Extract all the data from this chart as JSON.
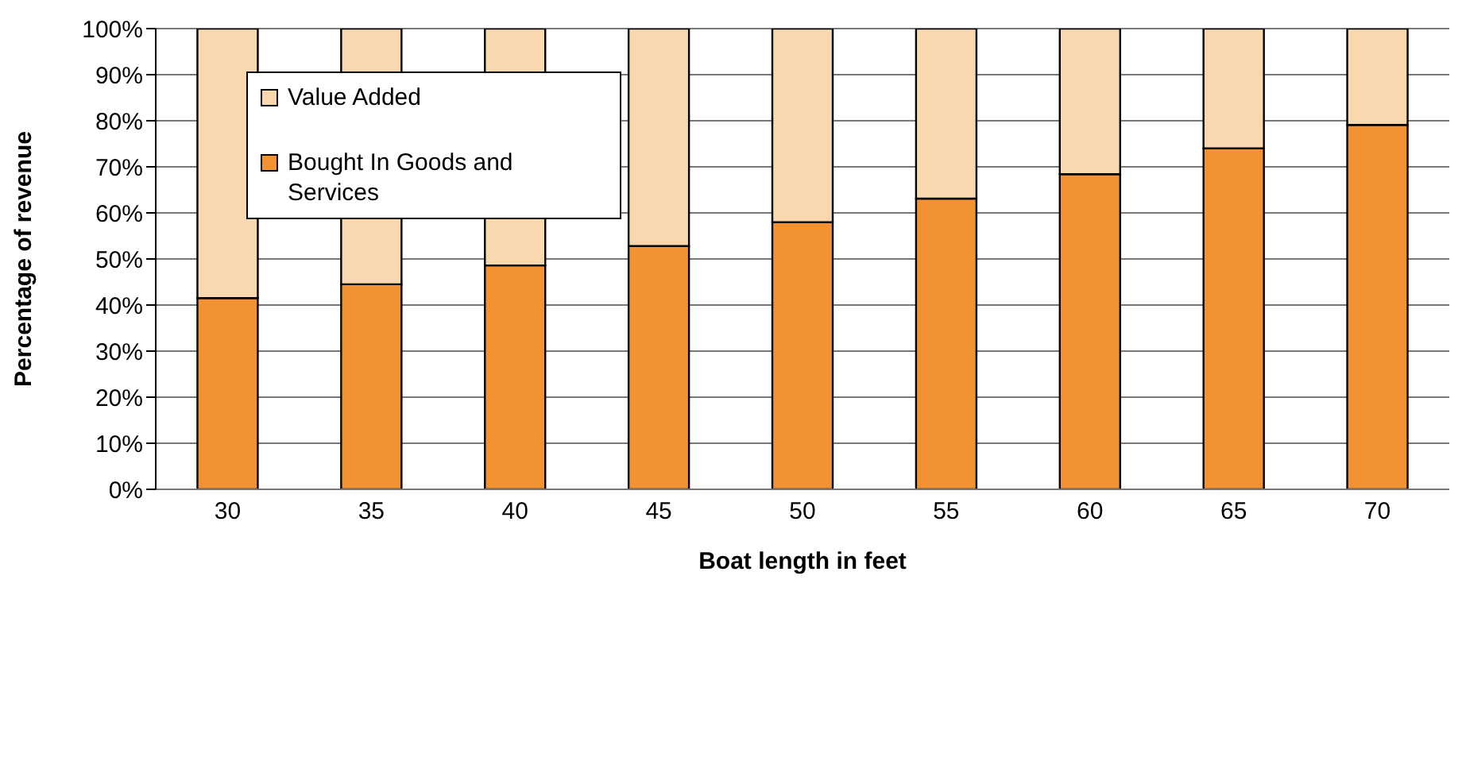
{
  "chart_data": {
    "type": "bar",
    "xlabel": "Boat length in feet",
    "ylabel": "Percentage of revenue",
    "categories": [
      "30",
      "35",
      "40",
      "45",
      "50",
      "55",
      "60",
      "65",
      "70"
    ],
    "series": [
      {
        "name": "Bought In Goods and Services",
        "color": "#f39233",
        "values": [
          41.5,
          44.5,
          48.6,
          52.8,
          58.0,
          63.1,
          68.4,
          74.0,
          79.1
        ]
      },
      {
        "name": "Value Added",
        "color": "#f9d8b0",
        "values": [
          58.5,
          55.5,
          51.4,
          47.2,
          42.0,
          36.9,
          31.6,
          26.0,
          20.9
        ]
      }
    ],
    "stacked": true,
    "ylim": [
      0,
      100
    ],
    "yticks": [
      {
        "value": 0,
        "label": "0%"
      },
      {
        "value": 10,
        "label": "10%"
      },
      {
        "value": 20,
        "label": "20%"
      },
      {
        "value": 30,
        "label": "30%"
      },
      {
        "value": 40,
        "label": "40%"
      },
      {
        "value": 50,
        "label": "50%"
      },
      {
        "value": 60,
        "label": "60%"
      },
      {
        "value": 70,
        "label": "70%"
      },
      {
        "value": 80,
        "label": "80%"
      },
      {
        "value": 90,
        "label": "90%"
      },
      {
        "value": 100,
        "label": "100%"
      }
    ],
    "grid": "y",
    "legend": "top left"
  }
}
